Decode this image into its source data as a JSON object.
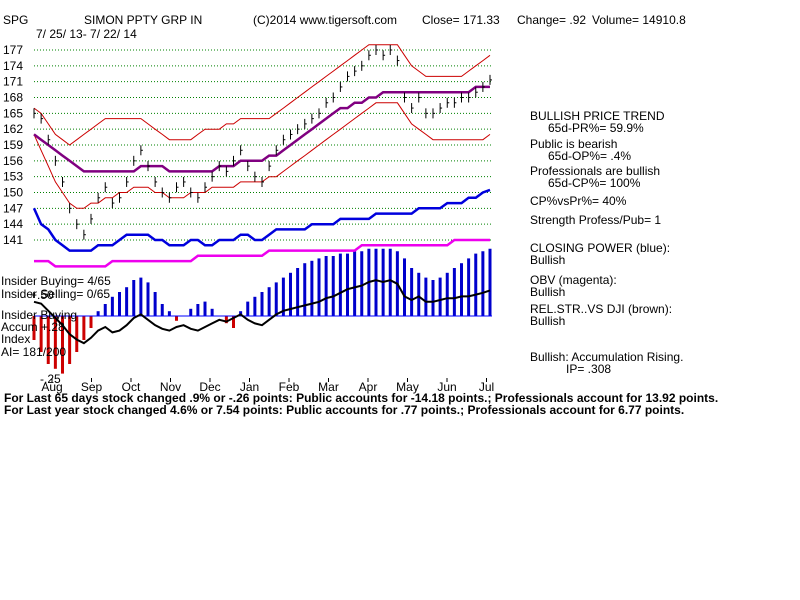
{
  "header": {
    "ticker": "SPG",
    "name": "SIMON PPTY GRP IN",
    "source": "(C)2014 www.tigersoft.com",
    "close": "Close=  171.33",
    "change": "Change= .92",
    "volume": "Volume= 14910.8",
    "date_range": "7/ 25/ 13-  7/ 22/ 14"
  },
  "left_labels": {
    "insider_buying_1": "Insider Buying= 4/65",
    "insider_selling": "Insider Selling= 0/65",
    "plus50": "+.50",
    "insider_buying_2": "Insider Buying",
    "accum": "Accum  +.28",
    "index": "Index",
    "ai": "AI= 181/200",
    "minus25": "-.25"
  },
  "right_panel": [
    {
      "text": "BULLISH PRICE TREND",
      "indent": 0
    },
    {
      "text": "65d-PR%= 59.9%",
      "indent": 1
    },
    {
      "text": "Public is bearish",
      "indent": 0
    },
    {
      "text": "65d-OP%= .4%",
      "indent": 1
    },
    {
      "text": "Professionals are bullish",
      "indent": 0
    },
    {
      "text": "65d-CP%= 100%",
      "indent": 1
    },
    {
      "text": "CP%vsPr%=  40%",
      "indent": 0
    },
    {
      "text": "Strength Profess/Pub= 1",
      "indent": 0
    },
    {
      "text": "CLOSING POWER (blue):",
      "indent": 0
    },
    {
      "text": "Bullish",
      "indent": 0
    },
    {
      "text": "OBV (magenta):",
      "indent": 0
    },
    {
      "text": "Bullish",
      "indent": 0
    },
    {
      "text": "REL.STR..VS DJI (brown):",
      "indent": 0
    },
    {
      "text": "Bullish",
      "indent": 0
    },
    {
      "text": "Bullish: Accumulation Rising.",
      "indent": 0
    },
    {
      "text": "IP=   .308",
      "indent": 2
    }
  ],
  "footer": [
    "For Last 65 days stock changed  .9% or -.26 points:  Public accounts for -14.18 points.;  Professionals account for  13.92 points.",
    "For Last year stock changed  4.6% or  7.54 points:  Public accounts for  .77 points.;  Professionals account for  6.77 points."
  ],
  "colors": {
    "price": "#000000",
    "bollinger": "#cc0000",
    "ma": "#800080",
    "closing_power": "#0000dd",
    "obv": "#ee00ee",
    "rel_strength": "#000000",
    "accum_pos": "#0000cc",
    "accum_neg": "#cc0000",
    "grid": "#008000",
    "zero_line": "#0000ff"
  },
  "chart_data": {
    "type": "line",
    "title": "SIMON PPTY GRP IN",
    "x_labels": [
      "Aug",
      "Sep",
      "Oct",
      "Nov",
      "Dec",
      "Jan",
      "Feb",
      "Mar",
      "Apr",
      "May",
      "Jun",
      "Jul"
    ],
    "y_ticks": [
      141,
      144,
      147,
      150,
      153,
      156,
      159,
      162,
      165,
      168,
      171,
      174,
      177
    ],
    "ylim": [
      139.5,
      178.5
    ],
    "grid": true,
    "price": [
      165,
      164,
      160,
      156,
      152,
      147,
      144,
      142,
      145,
      149,
      151,
      148,
      149,
      152,
      156,
      158,
      155,
      152,
      150,
      149,
      151,
      152,
      150,
      149,
      151,
      153,
      155,
      154,
      156,
      158,
      155,
      153,
      152,
      155,
      158,
      160,
      161,
      162,
      163,
      164,
      165,
      167,
      168,
      170,
      172,
      173,
      174,
      176,
      177,
      176,
      177,
      175,
      168,
      166,
      168,
      165,
      165,
      166,
      167,
      167,
      168,
      168,
      169,
      170,
      171.33
    ],
    "ma50": [
      161,
      160,
      159,
      158,
      157,
      156,
      155,
      154,
      154,
      154,
      154,
      154,
      154,
      154,
      154,
      155,
      155,
      155,
      155,
      154,
      154,
      154,
      154,
      154,
      154,
      154,
      155,
      155,
      155,
      156,
      156,
      156,
      156,
      157,
      157,
      158,
      159,
      160,
      161,
      162,
      163,
      164,
      165,
      166,
      166,
      167,
      167,
      168,
      168,
      169,
      169,
      169,
      169,
      169,
      169,
      169,
      169,
      169,
      169,
      169,
      169,
      169,
      170,
      170,
      170
    ],
    "upper_band": [
      166,
      165,
      163,
      161,
      160,
      159,
      160,
      161,
      162,
      163,
      164,
      164,
      164,
      164,
      164,
      164,
      163,
      162,
      161,
      160,
      160,
      160,
      160,
      161,
      162,
      162,
      162,
      163,
      163,
      164,
      164,
      164,
      164,
      164,
      165,
      166,
      167,
      168,
      169,
      170,
      171,
      172,
      173,
      174,
      175,
      176,
      177,
      178,
      178,
      178,
      178,
      178,
      176,
      174,
      173,
      172,
      172,
      172,
      172,
      172,
      172,
      173,
      174,
      175,
      176
    ],
    "lower_band": [
      161,
      158,
      155,
      152,
      150,
      148,
      147,
      147,
      148,
      148,
      149,
      149,
      150,
      150,
      151,
      151,
      151,
      150,
      150,
      149,
      149,
      149,
      150,
      150,
      150,
      151,
      151,
      151,
      151,
      152,
      152,
      152,
      152,
      153,
      153,
      154,
      155,
      156,
      157,
      158,
      159,
      160,
      161,
      162,
      163,
      164,
      165,
      166,
      167,
      167,
      167,
      167,
      165,
      163,
      162,
      161,
      160,
      160,
      160,
      160,
      160,
      160,
      160,
      160,
      161
    ],
    "closing_power": [
      147,
      144,
      143,
      141,
      140,
      139,
      139,
      139,
      139,
      140,
      140,
      140,
      141,
      142,
      142,
      142,
      142,
      141,
      141,
      140,
      140,
      140,
      141,
      141,
      140,
      140,
      141,
      141,
      141,
      142,
      142,
      141,
      141,
      142,
      143,
      143,
      143,
      143,
      143,
      144,
      144,
      144,
      144,
      145,
      145,
      145,
      145,
      145,
      146,
      146,
      146,
      146,
      146,
      146,
      147,
      147,
      147,
      147,
      148,
      148,
      148,
      149,
      149,
      150,
      150.5
    ],
    "obv": [
      137,
      137,
      137,
      136,
      136,
      136,
      136,
      136,
      136,
      136,
      136,
      137,
      137,
      137,
      137,
      137,
      137,
      137,
      137,
      137,
      137,
      137,
      137,
      138,
      138,
      138,
      138,
      138,
      138,
      138,
      138,
      138,
      138,
      139,
      139,
      139,
      139,
      139,
      139,
      139,
      139,
      139,
      139,
      139,
      139,
      139,
      140,
      140,
      140,
      140,
      140,
      140,
      140,
      140,
      140,
      140,
      140,
      140,
      140,
      141,
      141,
      141,
      141,
      141,
      141
    ],
    "accumulation": [
      -0.1,
      -0.15,
      -0.2,
      -0.22,
      -0.24,
      -0.2,
      -0.15,
      -0.1,
      -0.05,
      0.02,
      0.05,
      0.08,
      0.1,
      0.12,
      0.15,
      0.16,
      0.14,
      0.1,
      0.05,
      0.02,
      -0.02,
      0.0,
      0.03,
      0.05,
      0.06,
      0.03,
      0.0,
      -0.03,
      -0.05,
      0.02,
      0.06,
      0.08,
      0.1,
      0.12,
      0.14,
      0.16,
      0.18,
      0.2,
      0.22,
      0.23,
      0.24,
      0.25,
      0.25,
      0.26,
      0.26,
      0.27,
      0.27,
      0.28,
      0.28,
      0.28,
      0.28,
      0.27,
      0.24,
      0.2,
      0.18,
      0.16,
      0.15,
      0.16,
      0.18,
      0.2,
      0.22,
      0.24,
      0.26,
      0.27,
      0.28
    ]
  }
}
